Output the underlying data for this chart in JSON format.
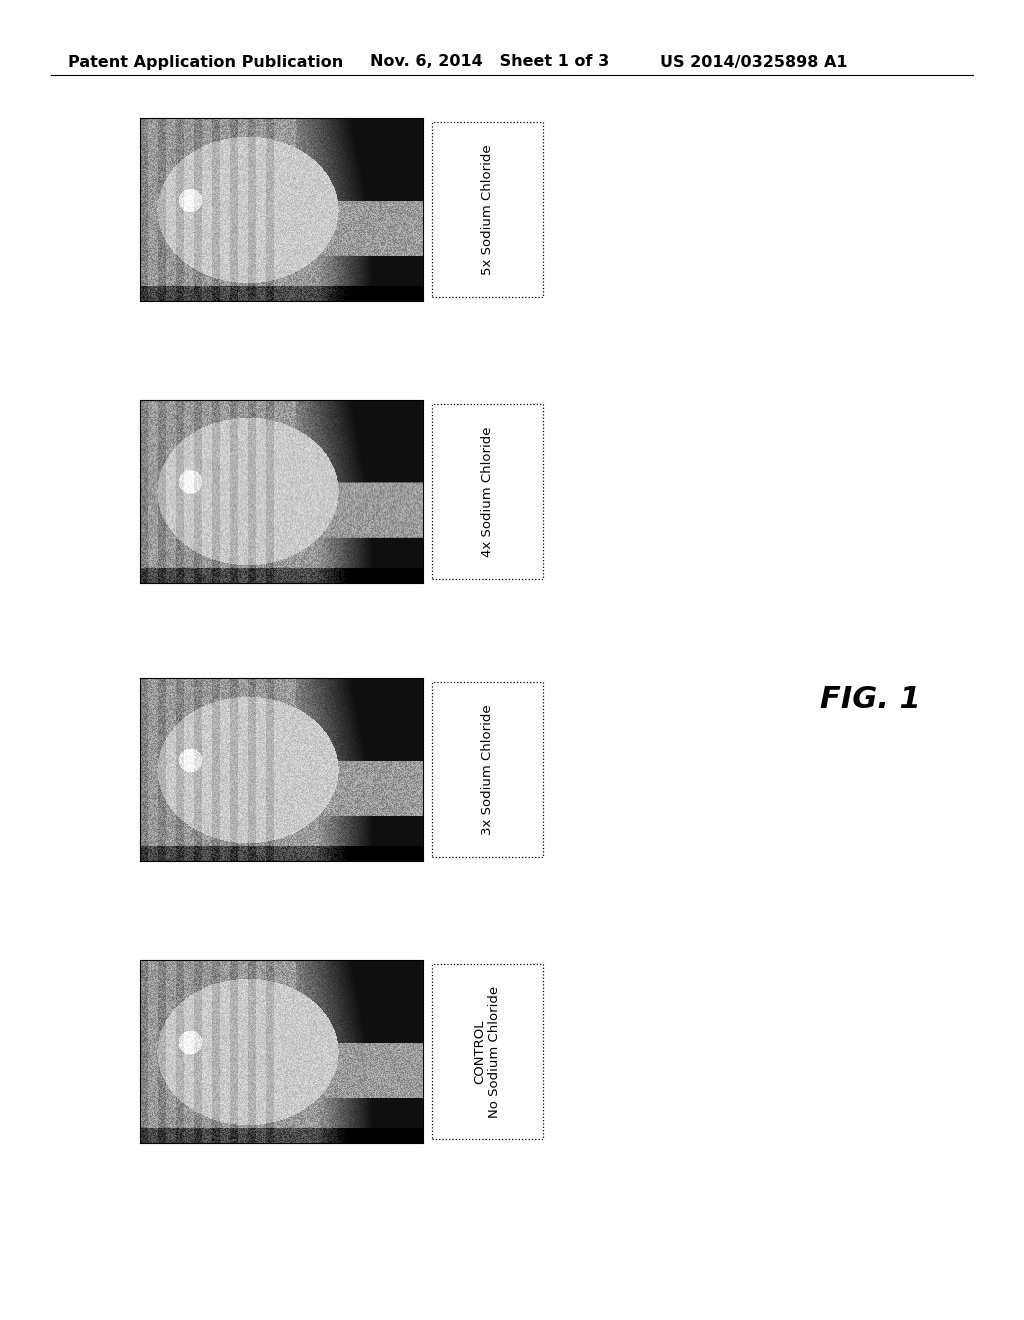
{
  "background_color": "#ffffff",
  "header_left": "Patent Application Publication",
  "header_center": "Nov. 6, 2014   Sheet 1 of 3",
  "header_right": "US 2014/0325898 A1",
  "header_fontsize": 11.5,
  "fig_label": "FIG. 1",
  "fig_label_fontsize": 22,
  "rows": [
    {
      "label": "5x Sodium Chloride",
      "box_style": "dotted"
    },
    {
      "label": "4x Sodium Chloride",
      "box_style": "dotted"
    },
    {
      "label": "3x Sodium Chloride",
      "box_style": "dotted"
    },
    {
      "label": "CONTROL\nNo Sodium Chloride",
      "box_style": "dotted"
    }
  ],
  "label_fontsize": 9.5
}
